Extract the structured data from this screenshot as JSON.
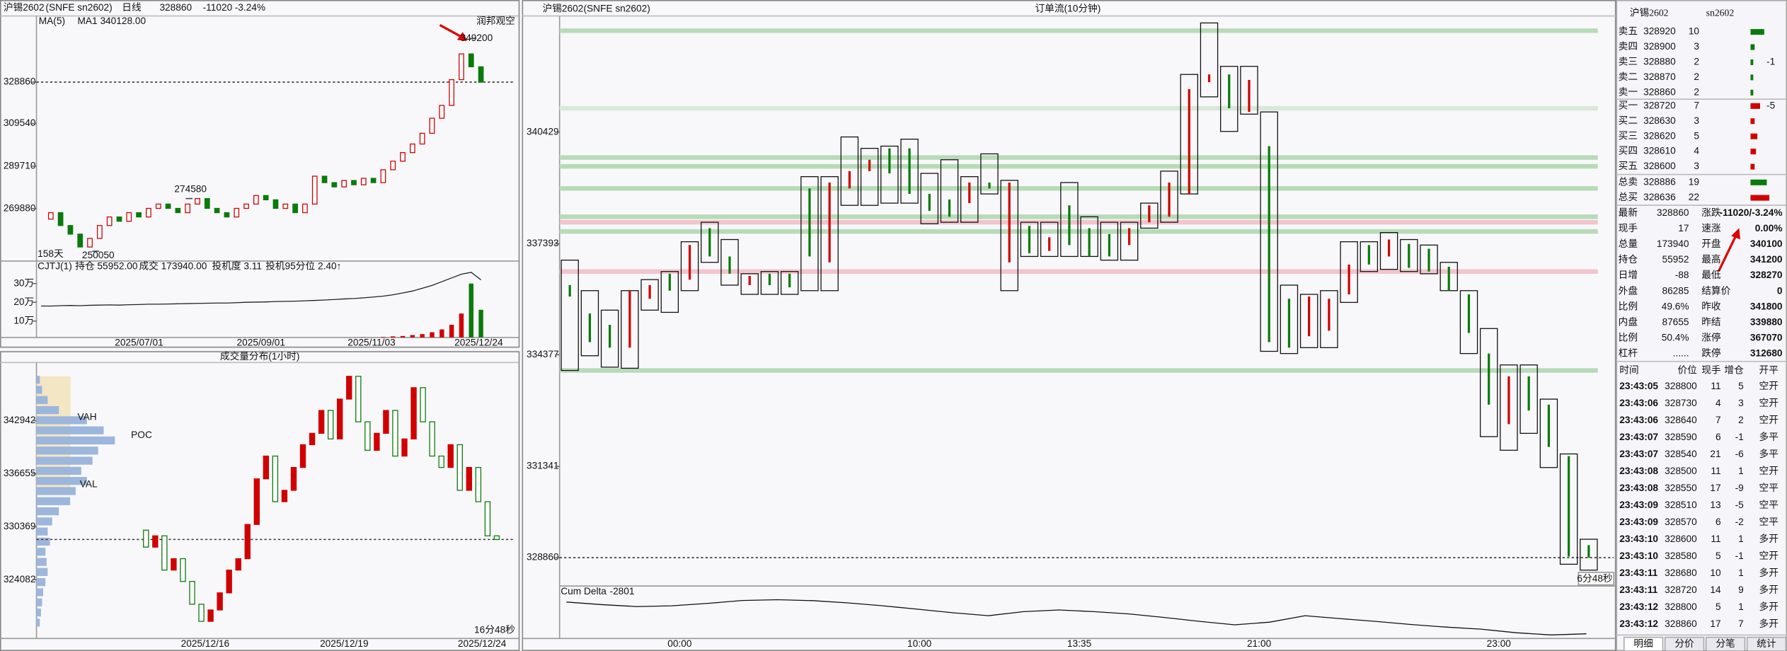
{
  "left_top": {
    "header": {
      "symbol": "沪锡2602",
      "exchange": "(SNFE sn2602)",
      "period": "日线",
      "price": 328860,
      "change": -11020,
      "change_pct": "-3.24%"
    },
    "ma5": "MA(5)",
    "ma1": "MA1 340128.00",
    "signal": "润邦观空",
    "days": "158天",
    "ylim": [
      245960,
      359690
    ],
    "yticks": [
      269880,
      289710,
      309540,
      328860
    ],
    "last_price": 328860,
    "closes": [
      265000,
      268000,
      262000,
      258000,
      252000,
      256000,
      262000,
      266000,
      264000,
      268000,
      266000,
      270000,
      272000,
      270000,
      268000,
      272000,
      274580,
      270000,
      268000,
      266000,
      270000,
      272000,
      276000,
      274000,
      270000,
      272000,
      268000,
      272000,
      285000,
      282000,
      280000,
      283000,
      281000,
      284000,
      282000,
      288000,
      292000,
      296000,
      300000,
      305000,
      312000,
      318000,
      330000,
      342000,
      336000,
      328860
    ],
    "peak_label": 274580,
    "low_label": 250050,
    "high_label": 349200
  },
  "volume_panel": {
    "indicator": "CJTJ(1)",
    "oi": "持仓 55952.00",
    "turnover": "成交 173940.00",
    "spec": "投机度 3.11",
    "spec95": "投机95分位 2.40↑",
    "ylim": [
      0,
      42
    ],
    "yticks": [
      {
        "value": 10,
        "label": "10万"
      },
      {
        "value": 20,
        "label": "20万"
      },
      {
        "value": 30,
        "label": "30万"
      }
    ],
    "volumes": [
      0.6,
      0.5,
      0.7,
      0.5,
      0.6,
      0.8,
      0.5,
      0.6,
      0.7,
      0.5,
      0.6,
      0.8,
      0.7,
      0.6,
      0.5,
      0.7,
      0.9,
      0.6,
      0.5,
      0.7,
      0.8,
      0.6,
      0.7,
      0.9,
      0.8,
      0.7,
      0.9,
      1.0,
      1.2,
      1.0,
      0.9,
      1.1,
      1.0,
      1.3,
      1.2,
      1.5,
      1.8,
      2.0,
      2.5,
      3.0,
      4.0,
      5.5,
      8,
      14,
      30,
      16
    ],
    "open_interest": [
      18,
      18,
      18.2,
      18.3,
      18.2,
      18.4,
      18.5,
      18.6,
      18.5,
      18.7,
      18.8,
      19,
      19,
      19.1,
      19.2,
      19.3,
      19.4,
      19.5,
      19.6,
      19.6,
      19.8,
      20,
      20.1,
      20.2,
      20.4,
      20.5,
      20.6,
      20.8,
      21,
      21.2,
      21.5,
      21.8,
      22,
      22.4,
      22.8,
      23.3,
      24,
      25,
      26,
      27.5,
      29,
      31,
      33,
      35,
      36,
      32
    ],
    "dates": [
      "2025/07/01",
      "2025/09/01",
      "2025/11/03",
      "2025/12/24"
    ]
  },
  "left_bottom": {
    "title": "成交量分布(1小时)",
    "ylim": [
      317120,
      349570
    ],
    "yticks": [
      324082,
      330369,
      336655,
      342942
    ],
    "last_price": 328860,
    "closes": [
      329960,
      327950,
      329290,
      325230,
      326580,
      323880,
      321180,
      319150,
      320500,
      322530,
      325230,
      326580,
      330640,
      336050,
      338750,
      333340,
      334690,
      337400,
      340100,
      341450,
      344160,
      340780,
      345510,
      348210,
      342810,
      339430,
      341450,
      344160,
      338750,
      340780,
      346860,
      342810,
      338750,
      337400,
      340100,
      334690,
      337400,
      333340,
      329290,
      328860
    ],
    "profile": {
      "xlim": [
        0,
        120
      ],
      "prices": [
        319000,
        320200,
        321400,
        322600,
        323800,
        325000,
        326200,
        327400,
        328600,
        329800,
        331000,
        332200,
        333400,
        334600,
        335800,
        337000,
        338200,
        339400,
        340600,
        341800,
        343000,
        344200,
        345400,
        346600,
        347800
      ],
      "volumes": [
        3,
        4,
        5,
        6,
        8,
        10,
        9,
        8,
        12,
        10,
        14,
        20,
        30,
        35,
        45,
        40,
        50,
        55,
        70,
        60,
        45,
        20,
        10,
        5,
        3
      ]
    },
    "vah": "VAH",
    "poc": "POC",
    "val": "VAL",
    "dates": [
      "2025/12/16",
      "2025/12/19",
      "2025/12/24"
    ],
    "timer": "16分48秒"
  },
  "main": {
    "header": "沪锡2602",
    "header_sub": "(SNFE sn2602)",
    "title": "订单流(10分钟)",
    "ylim": [
      328150,
      343590
    ],
    "yticks": [
      328860,
      331341,
      334377,
      337393,
      340429
    ],
    "last_price": 328860,
    "bars": {
      "open": [
        336270,
        335500,
        335190,
        334570,
        335900,
        336580,
        336420,
        337820,
        337050,
        336270,
        336580,
        336580,
        338900,
        336890,
        338900,
        339370,
        339990,
        339990,
        338750,
        338600,
        338500,
        339060,
        336890,
        337880,
        337200,
        338440,
        337820,
        337660,
        337360,
        337980,
        338130,
        338750,
        341790,
        342000,
        340980,
        340050,
        335900,
        334880,
        335030,
        336020,
        337360,
        337050,
        337390,
        337260,
        336770,
        336020,
        334410,
        332490,
        333790,
        333020,
        331620,
        329200
      ],
      "high": [
        336950,
        336120,
        335590,
        336120,
        336420,
        336640,
        337450,
        337980,
        337510,
        336580,
        336640,
        336640,
        339220,
        339220,
        340300,
        339990,
        340050,
        340240,
        339310,
        339680,
        339220,
        339840,
        339120,
        337980,
        337980,
        339060,
        338130,
        337980,
        337980,
        338500,
        339370,
        342000,
        343400,
        342220,
        342220,
        340980,
        336270,
        336020,
        336120,
        337450,
        337450,
        337700,
        337510,
        337360,
        336890,
        336120,
        335090,
        334100,
        334100,
        333170,
        331680,
        329360
      ],
      "low": [
        333950,
        334350,
        334040,
        334010,
        335590,
        335530,
        336120,
        336890,
        336270,
        336020,
        336020,
        336020,
        336120,
        336120,
        338440,
        338440,
        338500,
        338500,
        337940,
        337980,
        337980,
        338750,
        336120,
        337050,
        337050,
        337050,
        337050,
        336950,
        336950,
        337820,
        337980,
        338750,
        341390,
        340450,
        340920,
        334470,
        334410,
        334570,
        334570,
        335800,
        336640,
        336700,
        336640,
        336580,
        336120,
        334410,
        332150,
        331780,
        332240,
        331310,
        328680,
        328520
      ],
      "close": [
        335960,
        334720,
        334570,
        336120,
        336270,
        336120,
        337360,
        337050,
        336580,
        336520,
        336270,
        336210,
        337050,
        339060,
        339370,
        339680,
        339310,
        338750,
        338290,
        338130,
        339060,
        338900,
        339060,
        337140,
        337570,
        337360,
        337050,
        337050,
        337820,
        338440,
        339060,
        341600,
        342000,
        341080,
        341850,
        334720,
        334570,
        335960,
        335900,
        336830,
        336830,
        337510,
        336740,
        336640,
        336120,
        334970,
        333020,
        333790,
        332860,
        331870,
        328890,
        328860
      ]
    },
    "levels": [
      {
        "price": 343190,
        "color": "#b7dbb7"
      },
      {
        "price": 341080,
        "color": "#d8e8d8"
      },
      {
        "price": 339740,
        "color": "#b7dbb7"
      },
      {
        "price": 339500,
        "color": "#b7dbb7"
      },
      {
        "price": 338900,
        "color": "#b7dbb7"
      },
      {
        "price": 338130,
        "color": "#b7dbb7"
      },
      {
        "price": 337980,
        "color": "#f2c4cc"
      },
      {
        "price": 337730,
        "color": "#b7dbb7"
      },
      {
        "price": 336640,
        "color": "#f2c4cc"
      },
      {
        "price": 333950,
        "color": "#b7dbb7"
      }
    ],
    "times": [
      "00:00",
      "10:00",
      "13:35",
      "21:00",
      "23:00"
    ],
    "timer": "6分48秒",
    "cum_delta": {
      "label": "Cum Delta",
      "value": -2801,
      "ylim": [
        -3200,
        1000
      ],
      "values": [
        -80,
        -300,
        -470,
        -400,
        -200,
        50,
        120,
        40,
        -150,
        -400,
        -700,
        -1000,
        -1250,
        -900,
        -760,
        -900,
        -1100,
        -1400,
        -1735,
        -2030,
        -1800,
        -1250,
        -1500,
        -1735,
        -2000,
        -2225,
        -2400,
        -2710,
        -2900,
        -2801
      ]
    }
  },
  "quote": {
    "title": "沪锡2602",
    "code": "sn2602",
    "book": [
      {
        "label": "卖五",
        "price": 328920,
        "volume": 10
      },
      {
        "label": "卖四",
        "price": 328900,
        "volume": 3
      },
      {
        "label": "卖三",
        "price": 328880,
        "volume": 2,
        "change": -1
      },
      {
        "label": "卖二",
        "price": 328870,
        "volume": 2
      },
      {
        "label": "卖一",
        "price": 328860,
        "volume": 2
      },
      {
        "label": "买一",
        "price": 328720,
        "volume": 7,
        "change": -5
      },
      {
        "label": "买二",
        "price": 328630,
        "volume": 3
      },
      {
        "label": "买三",
        "price": 328620,
        "volume": 5
      },
      {
        "label": "买四",
        "price": 328610,
        "volume": 4
      },
      {
        "label": "买五",
        "price": 328600,
        "volume": 3
      }
    ],
    "totals": [
      {
        "label": "总卖",
        "price": 328886,
        "volume": 19
      },
      {
        "label": "总买",
        "price": 328636,
        "volume": 22
      }
    ],
    "stats": [
      [
        "最新",
        "328860",
        "涨跌",
        "-11020/-3.24%"
      ],
      [
        "现手",
        "17",
        "速涨",
        "0.00%"
      ],
      [
        "总量",
        "173940",
        "开盘",
        "340100"
      ],
      [
        "持仓",
        "55952",
        "最高",
        "341200"
      ],
      [
        "日增",
        "-88",
        "最低",
        "328270"
      ],
      [
        "外盘",
        "86285",
        "结算价",
        "0"
      ],
      [
        "比例",
        "49.6%",
        "昨收",
        "341800"
      ],
      [
        "内盘",
        "87655",
        "昨结",
        "339880"
      ],
      [
        "比例",
        "50.4%",
        "涨停",
        "367070"
      ],
      [
        "杠杆",
        "......",
        "跌停",
        "312680"
      ]
    ],
    "trades": {
      "header": [
        "时间",
        "价位",
        "现手",
        "增仓",
        "开平"
      ],
      "rows": [
        [
          "23:43:05",
          "328800",
          "11",
          "5",
          "空开"
        ],
        [
          "23:43:06",
          "328730",
          "4",
          "3",
          "空开"
        ],
        [
          "23:43:06",
          "328640",
          "7",
          "2",
          "空开"
        ],
        [
          "23:43:07",
          "328590",
          "6",
          "-1",
          "多平"
        ],
        [
          "23:43:07",
          "328540",
          "21",
          "-6",
          "多平"
        ],
        [
          "23:43:08",
          "328500",
          "11",
          "1",
          "空开"
        ],
        [
          "23:43:08",
          "328550",
          "17",
          "-9",
          "空平"
        ],
        [
          "23:43:09",
          "328510",
          "13",
          "-5",
          "空平"
        ],
        [
          "23:43:09",
          "328570",
          "6",
          "-2",
          "空平"
        ],
        [
          "23:43:10",
          "328600",
          "11",
          "1",
          "多开"
        ],
        [
          "23:43:10",
          "328580",
          "5",
          "-1",
          "空开"
        ],
        [
          "23:43:11",
          "328680",
          "10",
          "1",
          "多开"
        ],
        [
          "23:43:11",
          "328720",
          "14",
          "9",
          "多开"
        ],
        [
          "23:43:12",
          "328800",
          "5",
          "1",
          "多开"
        ],
        [
          "23:43:12",
          "328860",
          "17",
          "7",
          "多开"
        ]
      ]
    },
    "tabs": [
      "明细",
      "分价",
      "分笔",
      "统计"
    ]
  }
}
